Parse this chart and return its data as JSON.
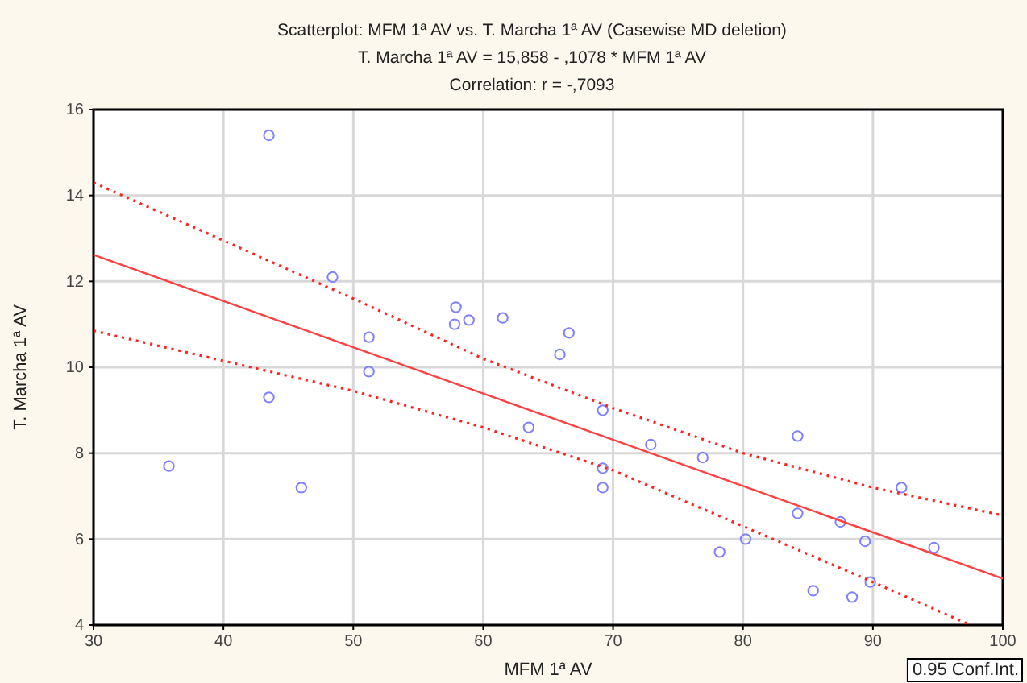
{
  "chart_data": {
    "type": "scatter",
    "title": "Scatterplot: MFM 1ª AV vs. T. Marcha 1ª AV (Casewise MD deletion)",
    "subtitle": "T. Marcha 1ª AV = 15,858 - ,1078 * MFM 1ª AV",
    "annotations": [
      "Correlation: r = -,7093",
      "0.95 Conf.Int."
    ],
    "xlabel": "MFM 1ª AV",
    "ylabel": "T. Marcha 1ª AV",
    "xlim": [
      30,
      100
    ],
    "ylim": [
      4,
      16
    ],
    "xticks": [
      30,
      40,
      50,
      60,
      70,
      80,
      90,
      100
    ],
    "yticks": [
      4,
      6,
      8,
      10,
      12,
      14,
      16
    ],
    "grid": true,
    "series": [
      {
        "marker": "circle",
        "color": "#8080ff",
        "x": [
          35.8,
          43.5,
          43.5,
          46.0,
          48.4,
          51.2,
          51.2,
          57.9,
          57.8,
          58.9,
          61.5,
          65.9,
          66.6,
          63.5,
          69.2,
          69.2,
          69.2,
          72.9,
          76.9,
          78.2,
          80.2,
          84.2,
          84.2,
          85.4,
          87.5,
          89.4,
          89.8,
          88.4,
          92.2,
          94.7
        ],
        "values": [
          7.7,
          15.4,
          9.3,
          7.2,
          12.1,
          10.7,
          9.9,
          11.4,
          11.0,
          11.1,
          11.15,
          10.3,
          10.8,
          8.6,
          9.0,
          7.65,
          7.2,
          8.2,
          7.9,
          5.7,
          6.0,
          8.4,
          6.6,
          4.8,
          6.4,
          5.95,
          5.0,
          4.65,
          7.2,
          5.8
        ]
      },
      {
        "type": "line",
        "color": "#ff4040",
        "line_style": "solid",
        "marker": "none",
        "x": [
          30,
          100
        ],
        "values": [
          12.62,
          5.08
        ]
      },
      {
        "type": "line",
        "color": "#ff2020",
        "line_style": "dotted",
        "marker": "none",
        "x": [
          30,
          40,
          50,
          60,
          70,
          80,
          90,
          100
        ],
        "values": [
          14.3,
          12.95,
          11.6,
          10.2,
          9.05,
          8.0,
          7.2,
          6.55
        ]
      },
      {
        "type": "line",
        "color": "#ff2020",
        "line_style": "dotted",
        "marker": "none",
        "x": [
          30,
          40,
          50,
          60,
          70,
          80,
          90,
          97.5
        ],
        "values": [
          10.85,
          10.15,
          9.45,
          8.6,
          7.6,
          6.3,
          5.0,
          4.0
        ]
      }
    ]
  }
}
